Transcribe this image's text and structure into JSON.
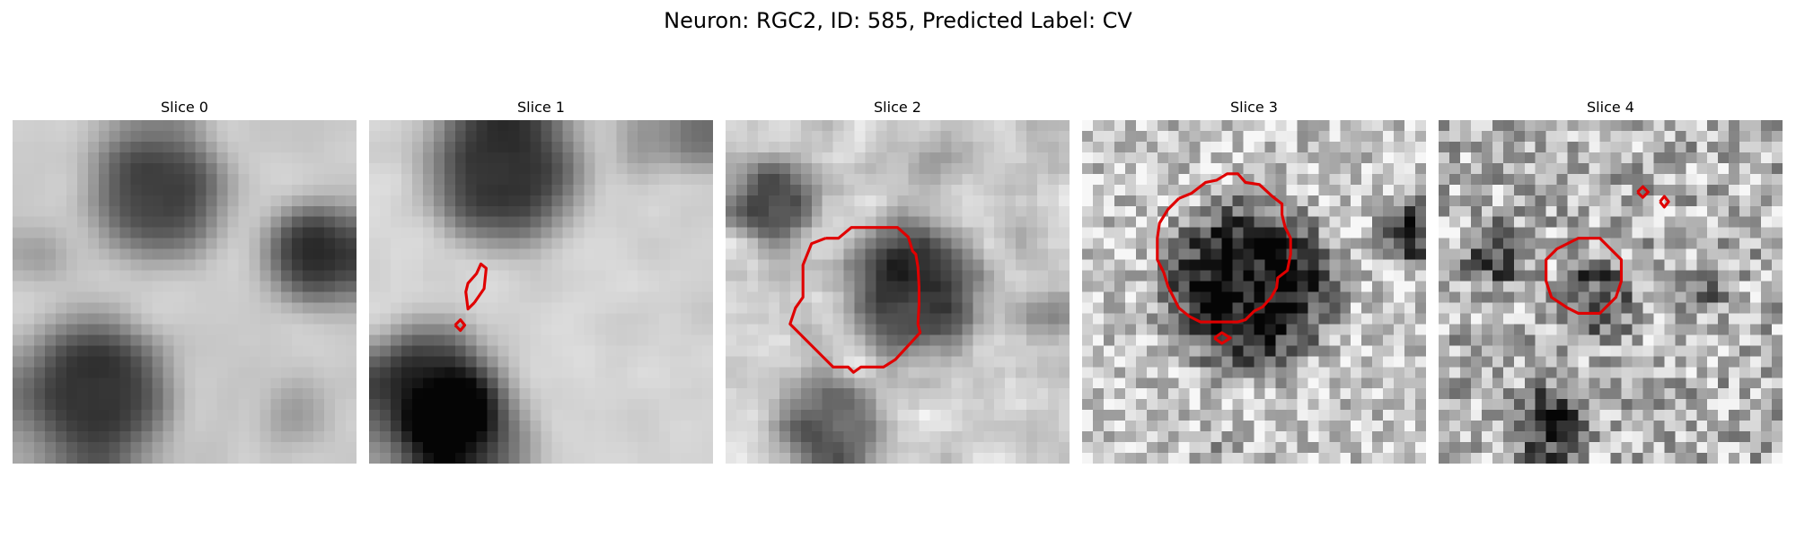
{
  "figure": {
    "title": "Neuron: RGC2, ID: 585, Predicted Label: CV"
  },
  "colors": {
    "contour": "#e00000",
    "background": "#ffffff"
  },
  "panels": [
    {
      "title": "Slice 0"
    },
    {
      "title": "Slice 1"
    },
    {
      "title": "Slice 2"
    },
    {
      "title": "Slice 3"
    },
    {
      "title": "Slice 4"
    }
  ]
}
